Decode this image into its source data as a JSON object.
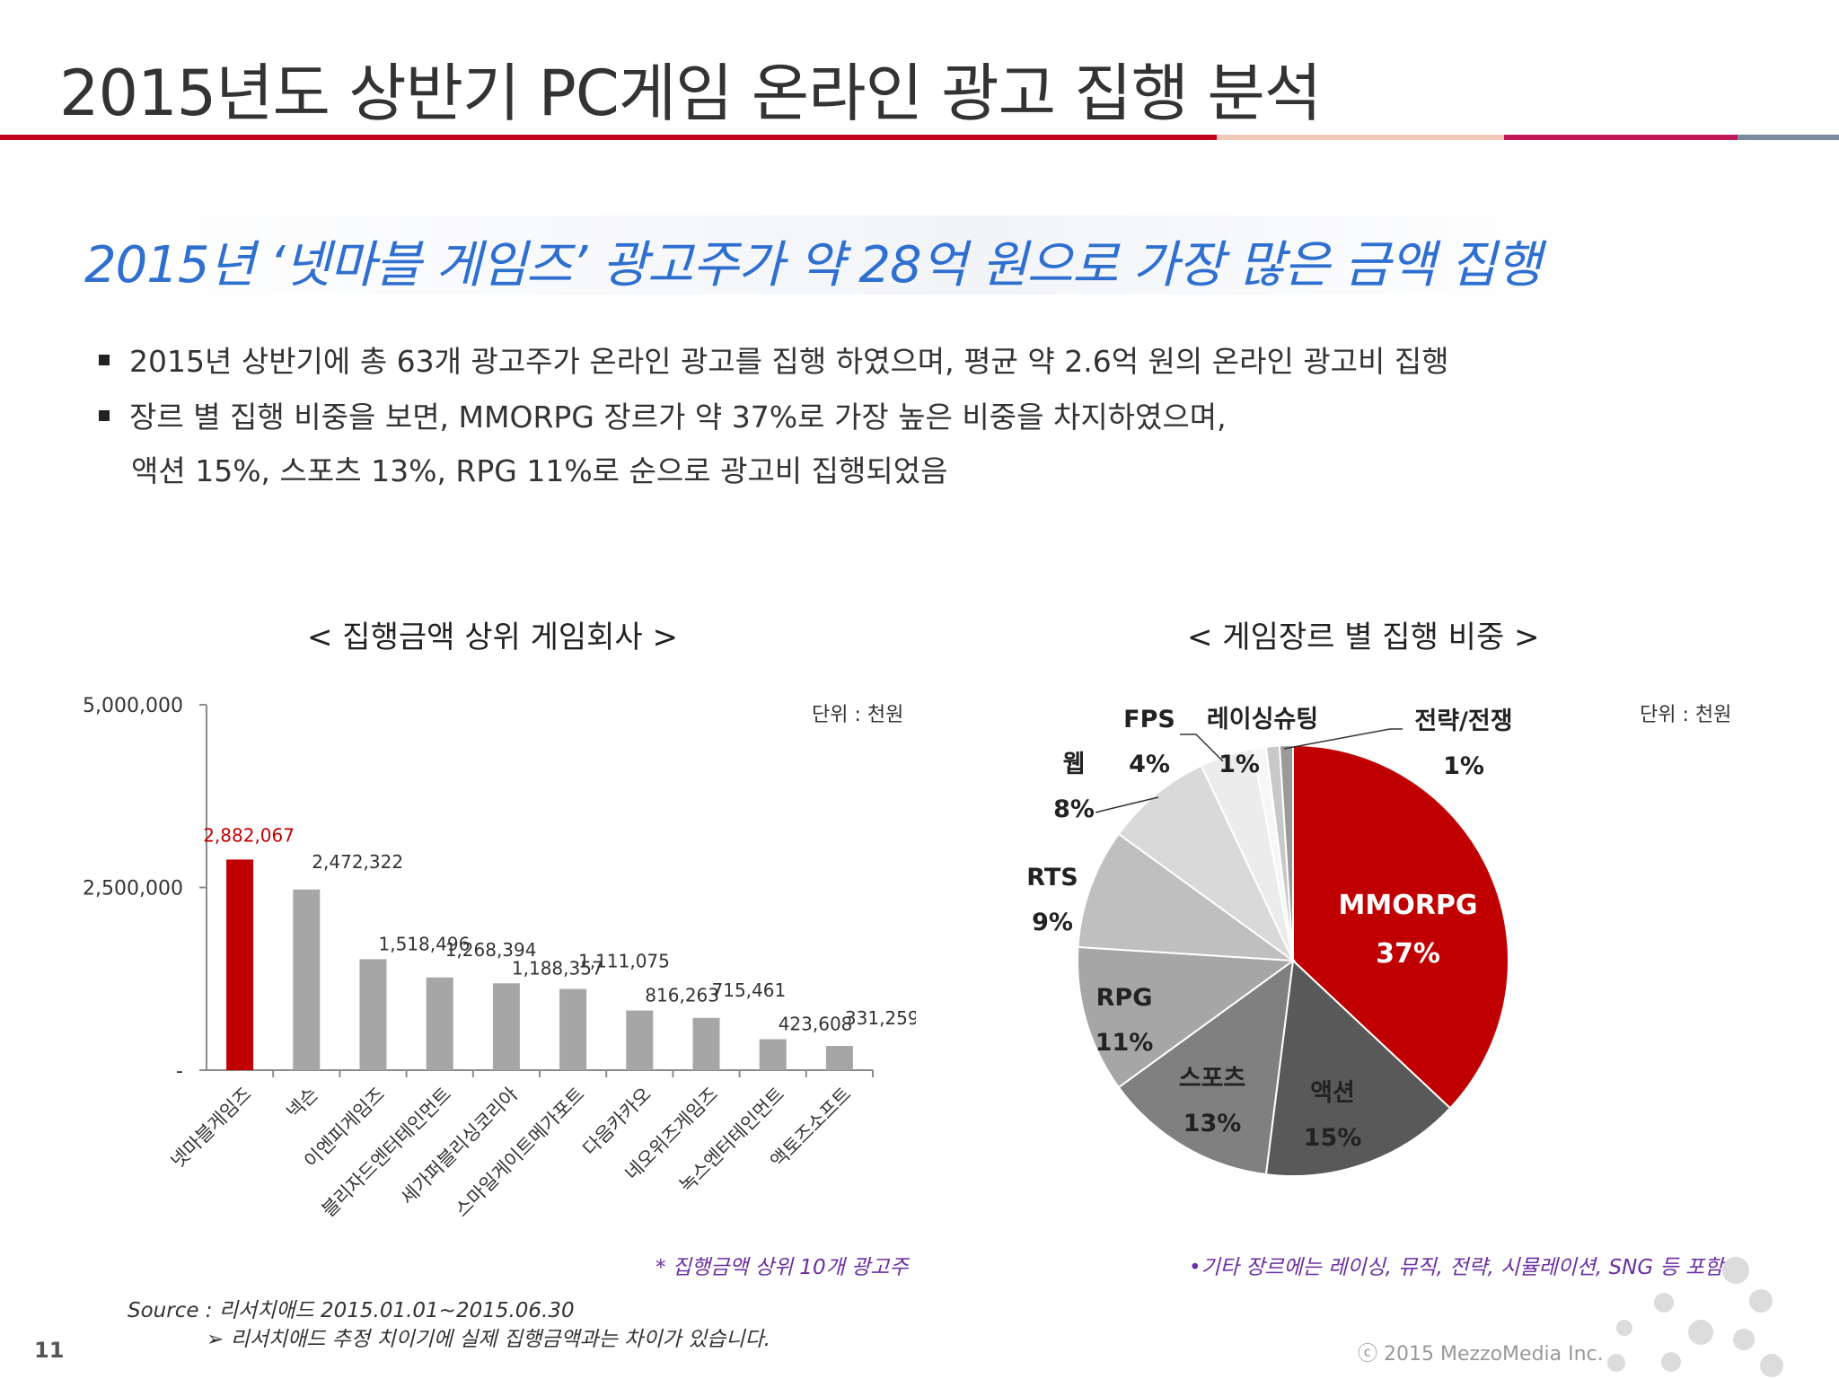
{
  "page": {
    "title": "2015년도 상반기 PC게임 온라인 광고 집행 분석",
    "headline": "2015년 ‘넷마블 게임즈’ 광고주가 약 28억 원으로 가장 많은 금액 집행",
    "bullets": [
      "2015년 상반기에 총 63개 광고주가 온라인 광고를 집행 하였으며, 평균 약 2.6억 원의 온라인 광고비 집행",
      "장르 별 집행 비중을 보면, MMORPG 장르가 약 37%로 가장 높은 비중을 차지하였으며,"
    ],
    "bullet_continuation": "액션 15%, 스포츠 13%, RPG 11%로 순으로 광고비 집행되었음",
    "bar_chart_title": "< 집행금액 상위 게임회사 >",
    "pie_chart_title": "< 게임장르 별 집행 비중 >",
    "unit_label": "단위 : 천원",
    "bar_note": "* 집행금액 상위 10개 광고주",
    "pie_note": "•기타 장르에는 레이싱, 뮤직, 전략, 시뮬레이션, SNG  등 포함",
    "source": "Source : 리서치애드 2015.01.01~2015.06.30",
    "source_note": "➢ 리서치애드 추정 치이기에 실제 집행금액과는 차이가 있습니다.",
    "page_number": "11",
    "copyright": "ⓒ 2015 MezzoMedia Inc."
  },
  "colors": {
    "accent_red": "#c00000",
    "bar_gray": "#a6a6a6",
    "headline_blue": "#2f6fd0",
    "note_purple": "#6a2fa0"
  },
  "chart_data": [
    {
      "type": "bar",
      "title": "< 집행금액 상위 게임회사 >",
      "categories": [
        "넷마블게임즈",
        "넥슨",
        "이엔피게임즈",
        "블리자드엔터테인먼트",
        "세가퍼블리싱코리아",
        "스마일게이트메가포트",
        "다음카카오",
        "네오위즈게임즈",
        "녹스엔터테인먼트",
        "액토즈소프트"
      ],
      "values": [
        2882067,
        2472322,
        1518496,
        1268394,
        1188357,
        1111075,
        816263,
        715461,
        423608,
        331259
      ],
      "value_labels": [
        "2,882,067",
        "2,472,322",
        "1,518,496",
        "1,268,394",
        "1,188,357",
        "1,111,075",
        "816,263",
        "715,461",
        "423,608",
        "331,259"
      ],
      "highlight_index": 0,
      "ylim": [
        0,
        5000000
      ],
      "yticks": [
        0,
        2500000,
        5000000
      ],
      "ytick_labels": [
        "-",
        "2,500,000",
        "5,000,000"
      ],
      "grid": false,
      "unit": "단위 : 천원"
    },
    {
      "type": "pie",
      "title": "< 게임장르 별 집행 비중 >",
      "slices": [
        {
          "label": "MMORPG",
          "value": 37,
          "pct_label": "37%",
          "color": "#c00000"
        },
        {
          "label": "액션",
          "value": 15,
          "pct_label": "15%",
          "color": "#595959"
        },
        {
          "label": "스포츠",
          "value": 13,
          "pct_label": "13%",
          "color": "#808080"
        },
        {
          "label": "RPG",
          "value": 11,
          "pct_label": "11%",
          "color": "#a6a6a6"
        },
        {
          "label": "RTS",
          "value": 9,
          "pct_label": "9%",
          "color": "#bfbfbf"
        },
        {
          "label": "웹",
          "value": 8,
          "pct_label": "8%",
          "color": "#d9d9d9"
        },
        {
          "label": "FPS",
          "value": 4,
          "pct_label": "4%",
          "color": "#ececec"
        },
        {
          "label": "레이싱슈팅",
          "value": 1,
          "pct_label": "1%",
          "color": "#f7f7f7"
        },
        {
          "label": "전략/전쟁",
          "value": 1,
          "pct_label": "1%",
          "color": "#c8c8c8"
        },
        {
          "label": "",
          "value": 1,
          "pct_label": "",
          "color": "#9a9a9a"
        }
      ],
      "unit": "단위 : 천원"
    }
  ]
}
